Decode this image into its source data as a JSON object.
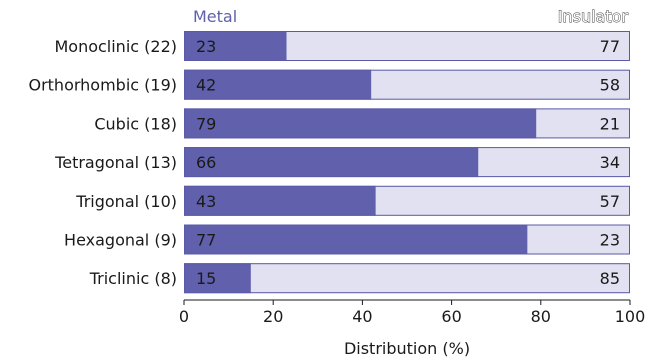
{
  "chart_data": {
    "type": "bar",
    "orientation": "horizontal",
    "stacked": true,
    "categories": [
      "Monoclinic (22)",
      "Orthorhombic (19)",
      "Cubic (18)",
      "Tetragonal (13)",
      "Trigonal (10)",
      "Hexagonal (9)",
      "Triclinic (8)"
    ],
    "series": [
      {
        "name": "Metal",
        "values": [
          23,
          42,
          79,
          66,
          43,
          77,
          15
        ],
        "color": "#6060ac"
      },
      {
        "name": "Insulator",
        "values": [
          77,
          58,
          21,
          34,
          57,
          23,
          85
        ],
        "color": "#e1e1f1"
      }
    ],
    "xlabel": "Distribution (%)",
    "xlim": [
      0,
      100
    ],
    "xticks": [
      0,
      20,
      40,
      60,
      80,
      100
    ],
    "legend": {
      "left": "Metal",
      "right": "Insulator",
      "placement": "top"
    },
    "grid": false,
    "border_color": "#5a5aa8"
  }
}
